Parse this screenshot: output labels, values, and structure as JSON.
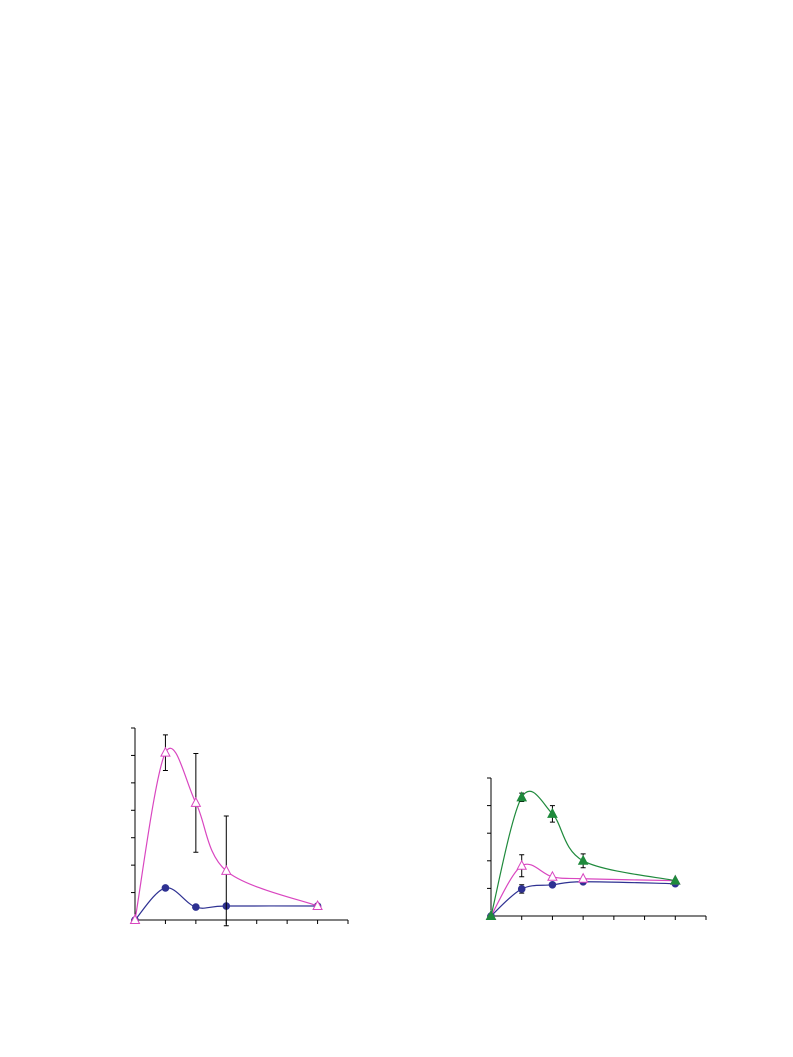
{
  "chart_data": [
    {
      "type": "line",
      "smooth": true,
      "x": [
        0,
        1,
        2,
        3,
        6
      ],
      "xlim": [
        0,
        7
      ],
      "xticks": [
        0,
        1,
        2,
        3,
        4,
        5,
        6,
        7
      ],
      "ylim": [
        0,
        7
      ],
      "yticks": [
        0,
        1,
        2,
        3,
        4,
        5,
        6,
        7
      ],
      "grid": false,
      "series": [
        {
          "color": "#2e3192",
          "marker": "circle",
          "values": [
            0,
            1.17,
            0.47,
            0.51,
            0.51
          ],
          "errors": [
            null,
            null,
            null,
            null,
            null
          ]
        },
        {
          "color": "#d946c0",
          "marker": "triangle-open",
          "values": [
            0,
            6.1,
            4.27,
            1.79,
            0.51
          ],
          "errors": [
            null,
            0.65,
            1.8,
            2.0,
            null
          ]
        }
      ]
    },
    {
      "type": "line",
      "smooth": true,
      "x": [
        0,
        1,
        2,
        3,
        6
      ],
      "xlim": [
        0,
        7
      ],
      "xticks": [
        0,
        1,
        2,
        3,
        4,
        5,
        6,
        7
      ],
      "ylim": [
        0,
        5
      ],
      "yticks": [
        0,
        1,
        2,
        3,
        4,
        5
      ],
      "grid": false,
      "series": [
        {
          "color": "#2e3192",
          "marker": "circle",
          "values": [
            0,
            0.98,
            1.13,
            1.24,
            1.17
          ],
          "errors": [
            null,
            0.15,
            null,
            null,
            null
          ]
        },
        {
          "color": "#d946c0",
          "marker": "triangle-open",
          "values": [
            0,
            1.82,
            1.42,
            1.35,
            1.28
          ],
          "errors": [
            null,
            0.4,
            null,
            null,
            null
          ]
        },
        {
          "color": "#1f8a3c",
          "marker": "triangle",
          "values": [
            0,
            4.3,
            3.7,
            2.0,
            1.28
          ],
          "errors": [
            null,
            0.15,
            0.3,
            0.25,
            null
          ]
        }
      ]
    }
  ]
}
